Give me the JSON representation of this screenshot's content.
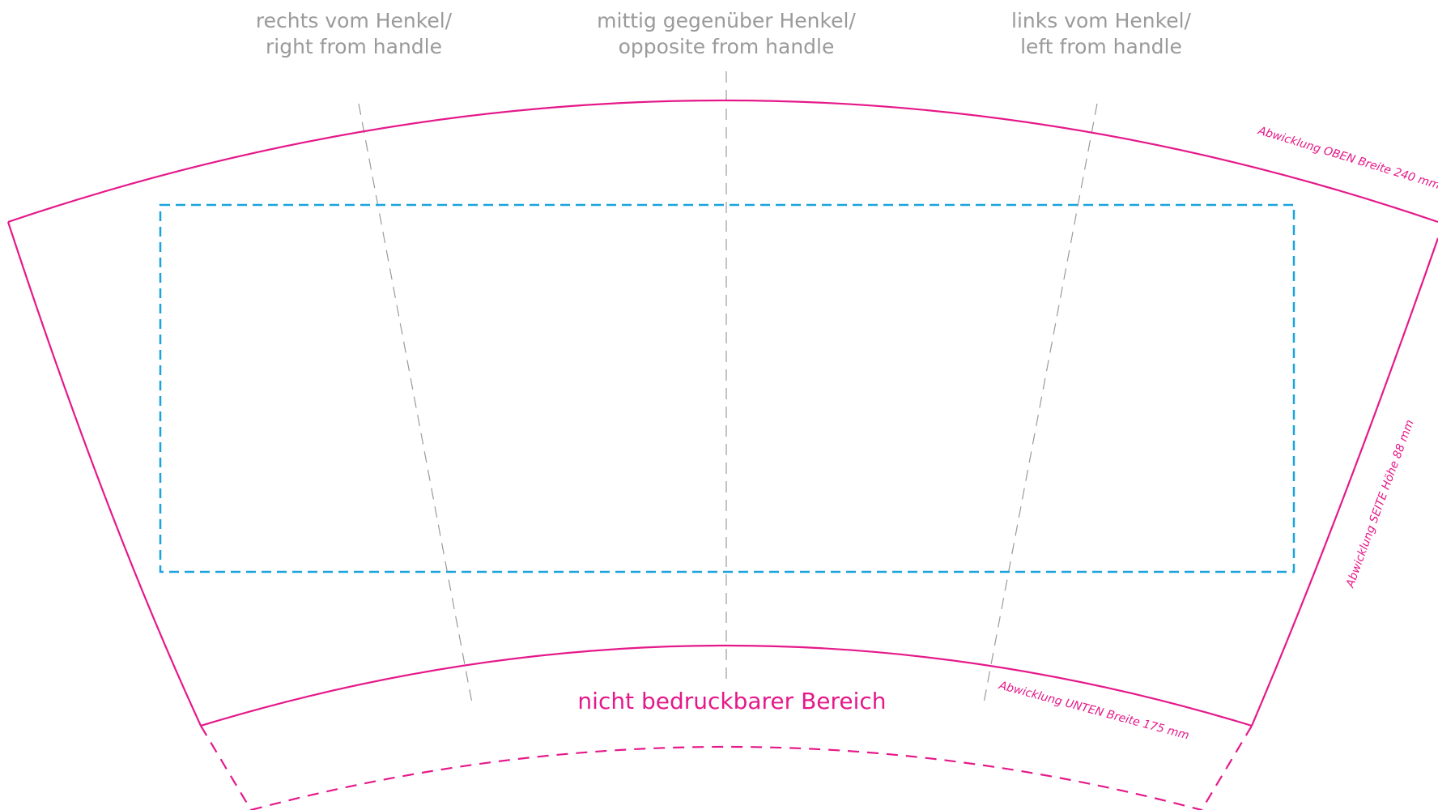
{
  "positions": {
    "right": {
      "line1": "rechts vom Henkel/",
      "line2": "right from handle"
    },
    "center": {
      "line1": "mittig gegenüber Henkel/",
      "line2": "opposite from handle"
    },
    "left": {
      "line1": "links vom Henkel/",
      "line2": "left from handle"
    }
  },
  "dimensions": {
    "top": "Abwicklung OBEN Breite 240 mm",
    "side": "Abwicklung SEITE Höhe 88 mm",
    "bottom": "Abwicklung UNTEN Breite 175 mm"
  },
  "non_printable_label": "nicht bedruckbarer Bereich",
  "colors": {
    "outline": "#e5198a",
    "print_area": "#1aa3dc",
    "guides": "#9a9a9a"
  }
}
